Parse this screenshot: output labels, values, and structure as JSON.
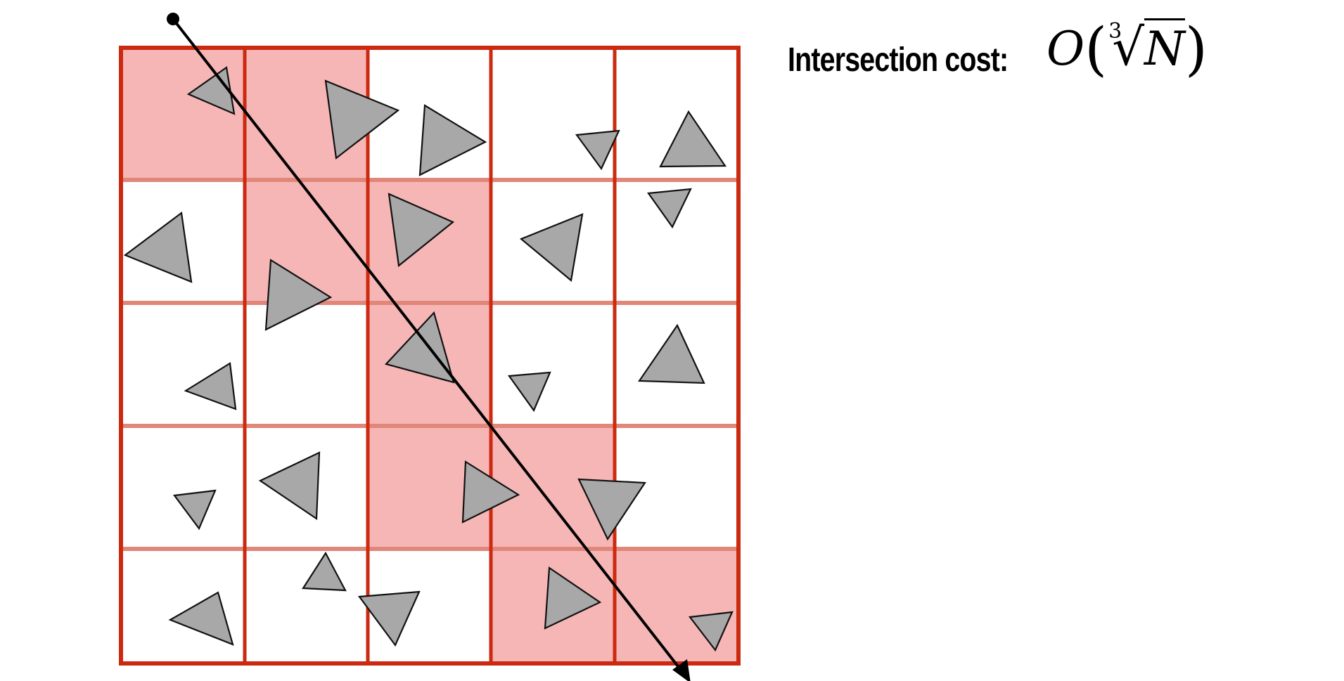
{
  "annotation": {
    "label": "Intersection cost:",
    "formula": {
      "big_o": "O",
      "open_paren": "(",
      "root_index": "3",
      "radical": "√",
      "radicand": "N",
      "close_paren": ")"
    }
  },
  "grid": {
    "rows": 5,
    "columns": 5,
    "highlighted_cells": [
      [
        0,
        0
      ],
      [
        0,
        1
      ],
      [
        1,
        1
      ],
      [
        1,
        2
      ],
      [
        2,
        2
      ],
      [
        3,
        2
      ],
      [
        3,
        3
      ],
      [
        4,
        3
      ],
      [
        4,
        4
      ]
    ]
  },
  "colors": {
    "cell_border": "#cc2a10",
    "row_divider": "#e0877a",
    "highlight_fill": "#f6b6b6",
    "triangle_fill": "#a7a8a7",
    "triangle_stroke": "#111111",
    "ray": "#000000"
  },
  "icons": {
    "ray_origin": "ray-origin-dot-icon",
    "ray_tip": "arrowhead-icon"
  }
}
